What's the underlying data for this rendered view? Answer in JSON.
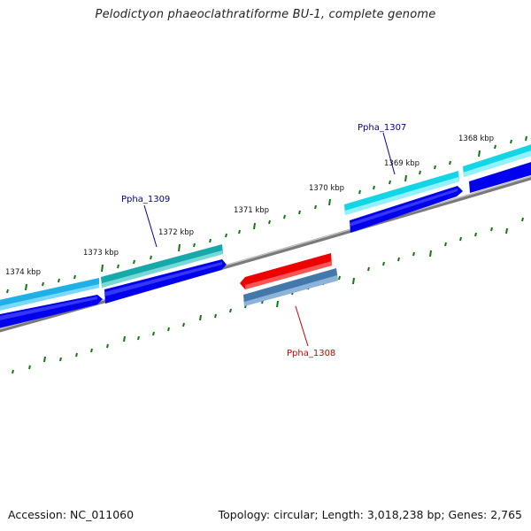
{
  "header": {
    "title": "Pelodictyon phaeoclathratiforme BU-1, complete genome"
  },
  "footer": {
    "accession": "Accession: NC_011060",
    "topology": "Topology: circular; Length: 3,018,238 bp; Genes: 2,765"
  },
  "map": {
    "kbp_labels": [
      "1374 kbp",
      "1373 kbp",
      "1372 kbp",
      "1371 kbp",
      "1370 kbp",
      "1369 kbp",
      "1368 kbp"
    ],
    "genes": [
      {
        "name": "Ppha_1309",
        "color": "#000099"
      },
      {
        "name": "Ppha_1307",
        "color": "#000099"
      },
      {
        "name": "Ppha_1308",
        "color": "#cc0000"
      }
    ],
    "colors": {
      "forward_gene_light": "#33ccdd",
      "forward_gene_teal": "#22aaaa",
      "forward_cds": "#0000ee",
      "reverse_gene": "#ee0000",
      "reverse_cds": "#4477aa",
      "backbone": "#888888",
      "tick": "#117711"
    }
  }
}
